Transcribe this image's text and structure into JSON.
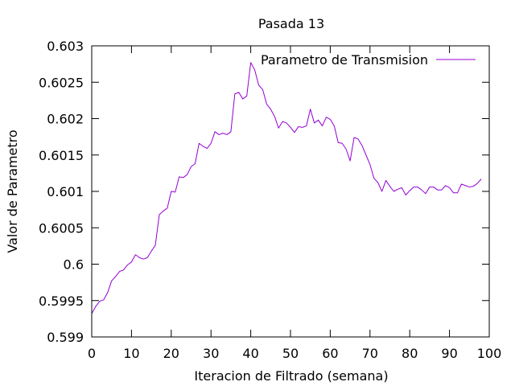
{
  "chart_data": {
    "type": "line",
    "title": "Pasada 13",
    "xlabel": "Iteracion de Filtrado (semana)",
    "ylabel": "Valor de Parametro",
    "xlim": [
      0,
      100
    ],
    "ylim": [
      0.599,
      0.603
    ],
    "x_ticks": [
      0,
      10,
      20,
      30,
      40,
      50,
      60,
      70,
      80,
      90,
      100
    ],
    "x_tick_labels": [
      "0",
      "10",
      "20",
      "30",
      "40",
      "50",
      "60",
      "70",
      "80",
      "90",
      "100"
    ],
    "y_ticks": [
      0.599,
      0.5995,
      0.6,
      0.6005,
      0.601,
      0.6015,
      0.602,
      0.6025,
      0.603
    ],
    "y_tick_labels": [
      "0.599",
      "0.5995",
      "0.6",
      "0.6005",
      "0.601",
      "0.6015",
      "0.602",
      "0.6025",
      "0.603"
    ],
    "grid": false,
    "legend_position": "top-right",
    "series": [
      {
        "name": "Parametro de Transmision",
        "color": "#9400d3",
        "x": [
          0,
          1,
          2,
          3,
          4,
          5,
          6,
          7,
          8,
          9,
          10,
          11,
          12,
          13,
          14,
          15,
          16,
          17,
          18,
          19,
          20,
          21,
          22,
          23,
          24,
          25,
          26,
          27,
          28,
          29,
          30,
          31,
          32,
          33,
          34,
          35,
          36,
          37,
          38,
          39,
          40,
          41,
          42,
          43,
          44,
          45,
          46,
          47,
          48,
          49,
          50,
          51,
          52,
          53,
          54,
          55,
          56,
          57,
          58,
          59,
          60,
          61,
          62,
          63,
          64,
          65,
          66,
          67,
          68,
          69,
          70,
          71,
          72,
          73,
          74,
          75,
          76,
          77,
          78,
          79,
          80,
          81,
          82,
          83,
          84,
          85,
          86,
          87,
          88,
          89,
          90,
          91,
          92,
          93,
          94,
          95,
          96,
          97,
          98
        ],
        "values": [
          0.59932,
          0.59942,
          0.59949,
          0.59951,
          0.59961,
          0.59977,
          0.59983,
          0.5999,
          0.59992,
          0.59999,
          0.60003,
          0.60013,
          0.60009,
          0.60007,
          0.60009,
          0.60018,
          0.60026,
          0.60068,
          0.60073,
          0.60077,
          0.601,
          0.60099,
          0.6012,
          0.60119,
          0.60123,
          0.60134,
          0.60138,
          0.60166,
          0.60162,
          0.60159,
          0.60166,
          0.60182,
          0.60178,
          0.6018,
          0.60178,
          0.60182,
          0.60234,
          0.60236,
          0.60227,
          0.60231,
          0.60277,
          0.60267,
          0.60246,
          0.6024,
          0.6022,
          0.60213,
          0.60203,
          0.60187,
          0.60196,
          0.60194,
          0.60188,
          0.60181,
          0.60189,
          0.60188,
          0.6019,
          0.60213,
          0.60194,
          0.60198,
          0.6019,
          0.60202,
          0.60199,
          0.6019,
          0.60167,
          0.60166,
          0.60158,
          0.60142,
          0.60174,
          0.60172,
          0.60163,
          0.6015,
          0.60137,
          0.60118,
          0.60112,
          0.601,
          0.60115,
          0.60107,
          0.601,
          0.60103,
          0.60105,
          0.60095,
          0.60101,
          0.60106,
          0.60106,
          0.60102,
          0.60097,
          0.60106,
          0.60106,
          0.60102,
          0.60102,
          0.60108,
          0.60105,
          0.60098,
          0.60098,
          0.6011,
          0.60108,
          0.60106,
          0.60107,
          0.60111,
          0.60117
        ]
      }
    ]
  }
}
